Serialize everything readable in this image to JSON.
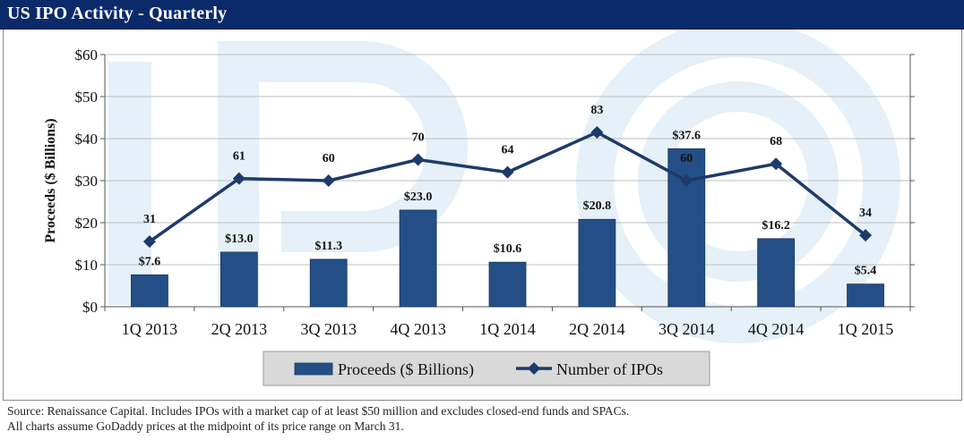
{
  "header": {
    "title": "US IPO Activity - Quarterly"
  },
  "chart_data": {
    "type": "bar+line",
    "title": "US IPO Activity - Quarterly",
    "categories": [
      "1Q 2013",
      "2Q 2013",
      "3Q 2013",
      "4Q 2013",
      "1Q 2014",
      "2Q 2014",
      "3Q 2014",
      "4Q 2014",
      "1Q 2015"
    ],
    "ylabel": "Proceeds ($ Billions)",
    "ylim": [
      0,
      60
    ],
    "yticks": [
      0,
      10,
      20,
      30,
      40,
      50,
      60
    ],
    "ytick_labels": [
      "$0",
      "$10",
      "$20",
      "$30",
      "$40",
      "$50",
      "$60"
    ],
    "secondary_ylim": [
      0,
      120
    ],
    "series": [
      {
        "name": "Proceeds ($ Billions)",
        "kind": "bar",
        "values": [
          7.6,
          13.0,
          11.3,
          23.0,
          10.6,
          20.8,
          37.6,
          16.2,
          5.4
        ],
        "labels": [
          "$7.6",
          "$13.0",
          "$11.3",
          "$23.0",
          "$10.6",
          "$20.8",
          "$37.6",
          "$16.2",
          "$5.4"
        ]
      },
      {
        "name": "Number of IPOs",
        "kind": "line",
        "axis": "secondary",
        "values": [
          31,
          61,
          60,
          70,
          64,
          83,
          60,
          68,
          34
        ],
        "labels": [
          "31",
          "61",
          "60",
          "70",
          "64",
          "83",
          "60",
          "68",
          "34"
        ]
      }
    ],
    "legend": {
      "position": "bottom-center",
      "entries": [
        "Proceeds ($ Billions)",
        "Number of IPOs"
      ]
    },
    "colors": {
      "bar": "#244f86",
      "line": "#1d3a6a",
      "watermark": "#e6f0f8",
      "grid": "#bfbfbf",
      "legend_bg": "#d9d9d9"
    }
  },
  "footer": {
    "line1": "Source: Renaissance Capital. Includes IPOs with a market cap of at least $50 million and excludes closed-end funds and SPACs.",
    "line2": "All charts assume GoDaddy prices at the midpoint of its price range on March 31."
  }
}
